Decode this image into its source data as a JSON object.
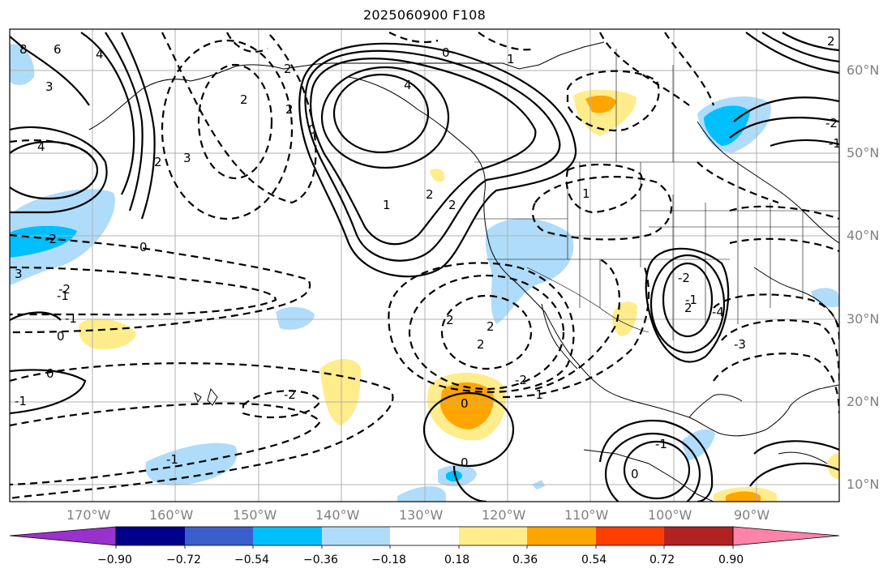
{
  "title": "2025060900 F108",
  "lon_labels": [
    "170°W",
    "160°W",
    "150°W",
    "140°W",
    "130°W",
    "120°W",
    "110°W",
    "100°W",
    "90°W"
  ],
  "lat_labels": [
    "60°N",
    "50°N",
    "40°N",
    "30°N",
    "20°N",
    "10°N"
  ],
  "contour_labels": [
    "8",
    "6",
    "4",
    "3",
    "4",
    "3",
    "2",
    "4",
    "0",
    "1",
    "2",
    "2",
    "1",
    "3",
    "-2",
    "-1",
    "0",
    "-2",
    "-1",
    "0",
    "0",
    "-1",
    "-2",
    "-1",
    "2",
    "2",
    "2",
    "0",
    "-2",
    "-1",
    "0",
    "-2",
    "-1",
    "2",
    "-4",
    "-3",
    "-1",
    "0",
    "-2",
    "-1",
    "0",
    "1",
    "2",
    "2",
    "2",
    "2"
  ],
  "colorbar": {
    "ticks": [
      "−0.90",
      "−0.72",
      "−0.54",
      "−0.36",
      "−0.18",
      "0.18",
      "0.36",
      "0.54",
      "0.72",
      "0.90"
    ],
    "colors": [
      "#9932cc",
      "#00008b",
      "#3a5fcd",
      "#00bfff",
      "#afdcfa",
      "#ffffff",
      "#ffec8b",
      "#ffa500",
      "#ff3e00",
      "#b22222",
      "#ff82ab"
    ]
  },
  "shading_colors": {
    "neg_light": "#afdcfa",
    "neg_mid": "#00bfff",
    "pos_light": "#ffec8b",
    "pos_mid": "#ffa500"
  }
}
